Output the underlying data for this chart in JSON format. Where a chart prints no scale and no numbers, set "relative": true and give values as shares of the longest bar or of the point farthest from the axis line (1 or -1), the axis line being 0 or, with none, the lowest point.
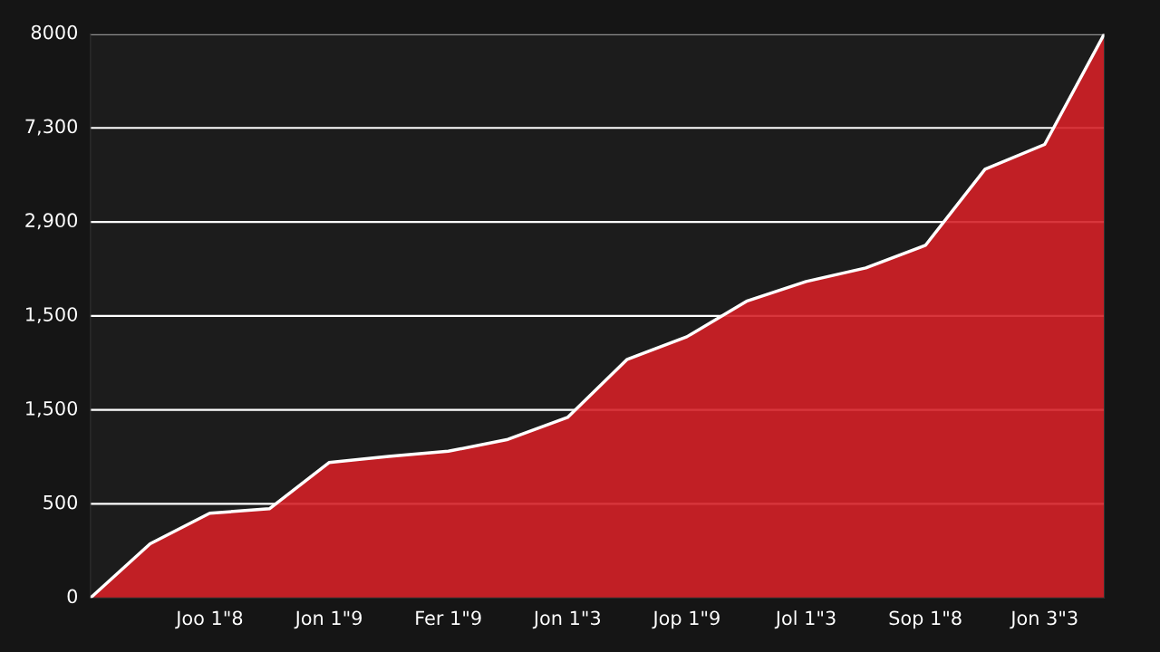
{
  "chart_data": {
    "type": "area",
    "relative": true,
    "categories": [
      null,
      null,
      "Joo 1\"8",
      null,
      "Jon 1\"9",
      null,
      "Fer 1\"9",
      null,
      "Jon 1\"3",
      null,
      "Jop 1\"9",
      null,
      "Jol 1\"3",
      null,
      "Sop 1\"8",
      null,
      "Jon 3\"3",
      null
    ],
    "series": [
      {
        "color": "#d42027",
        "values": [
          0,
          0.096,
          0.15,
          0.158,
          0.24,
          0.251,
          0.26,
          0.281,
          0.32,
          0.423,
          0.463,
          0.526,
          0.561,
          0.585,
          0.625,
          0.76,
          0.804,
          1
        ]
      }
    ],
    "annotations": [
      "8000",
      "7,300",
      "2,900",
      "1,500",
      "1,500",
      "500",
      "0"
    ],
    "grid": "y",
    "legend": false
  }
}
